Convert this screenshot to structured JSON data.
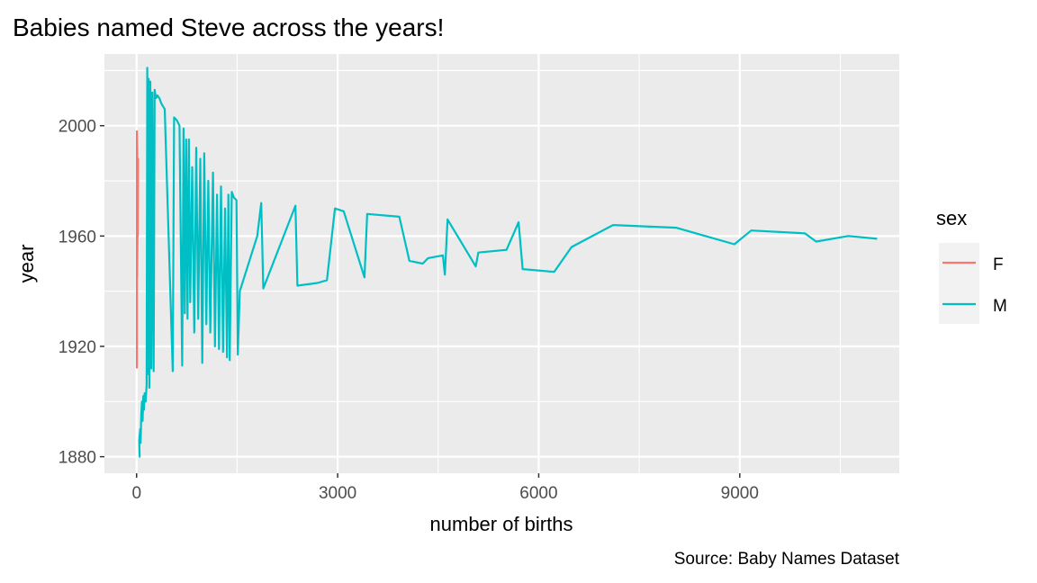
{
  "chart_data": {
    "type": "line",
    "title": "Babies named Steve across the years!",
    "xlabel": "number of births",
    "ylabel": "year",
    "caption": "Source: Baby Names Dataset",
    "xlim": [
      -480,
      11380
    ],
    "ylim": [
      1874,
      2026
    ],
    "x_ticks": [
      0,
      3000,
      6000,
      9000
    ],
    "x_tick_labels": [
      "0",
      "3000",
      "6000",
      "9000"
    ],
    "y_ticks": [
      1880,
      1920,
      1960,
      2000
    ],
    "y_tick_labels": [
      "1880",
      "1920",
      "1960",
      "2000"
    ],
    "grid": true,
    "legend": {
      "title": "sex",
      "position": "right"
    },
    "series": [
      {
        "name": "F",
        "color": "#F8766D",
        "points": [
          [
            5,
            1912
          ],
          [
            5,
            1940
          ],
          [
            5,
            1960
          ],
          [
            5,
            1982
          ],
          [
            5,
            1998
          ],
          [
            10,
            1990
          ],
          [
            15,
            1975
          ],
          [
            20,
            1960
          ],
          [
            22,
            1988
          ],
          [
            18,
            1970
          ],
          [
            12,
            1955
          ],
          [
            8,
            1945
          ]
        ]
      },
      {
        "name": "M",
        "color": "#00BFC4",
        "points": [
          [
            35,
            1880
          ],
          [
            45,
            1880
          ],
          [
            40,
            1886
          ],
          [
            55,
            1890
          ],
          [
            60,
            1885
          ],
          [
            70,
            1895
          ],
          [
            80,
            1900
          ],
          [
            90,
            1893
          ],
          [
            100,
            1902
          ],
          [
            110,
            1897
          ],
          [
            120,
            1903
          ],
          [
            135,
            1900
          ],
          [
            150,
            1906
          ],
          [
            160,
            2021
          ],
          [
            170,
            1910
          ],
          [
            180,
            2017
          ],
          [
            190,
            1905
          ],
          [
            205,
            2016
          ],
          [
            220,
            1912
          ],
          [
            235,
            2012
          ],
          [
            255,
            1911
          ],
          [
            270,
            2013
          ],
          [
            290,
            2010
          ],
          [
            310,
            2011
          ],
          [
            340,
            2010
          ],
          [
            370,
            2008
          ],
          [
            420,
            2006
          ],
          [
            540,
            1911
          ],
          [
            560,
            2003
          ],
          [
            600,
            2002
          ],
          [
            640,
            2000
          ],
          [
            680,
            1913
          ],
          [
            700,
            1999
          ],
          [
            720,
            1932
          ],
          [
            740,
            1995
          ],
          [
            760,
            1930
          ],
          [
            780,
            1995
          ],
          [
            800,
            1936
          ],
          [
            830,
            1985
          ],
          [
            860,
            1925
          ],
          [
            890,
            1992
          ],
          [
            920,
            1930
          ],
          [
            950,
            1988
          ],
          [
            980,
            1914
          ],
          [
            1010,
            1990
          ],
          [
            1040,
            1928
          ],
          [
            1070,
            1980
          ],
          [
            1100,
            1925
          ],
          [
            1140,
            1983
          ],
          [
            1170,
            1920
          ],
          [
            1200,
            1975
          ],
          [
            1230,
            1919
          ],
          [
            1260,
            1978
          ],
          [
            1290,
            1918
          ],
          [
            1320,
            1970
          ],
          [
            1350,
            1916
          ],
          [
            1370,
            1975
          ],
          [
            1390,
            1915
          ],
          [
            1420,
            1976
          ],
          [
            1450,
            1974
          ],
          [
            1490,
            1973
          ],
          [
            1510,
            1917
          ],
          [
            1540,
            1940
          ],
          [
            1800,
            1960
          ],
          [
            1860,
            1972
          ],
          [
            1890,
            1941
          ],
          [
            2370,
            1971
          ],
          [
            2400,
            1942
          ],
          [
            2700,
            1943
          ],
          [
            2840,
            1944
          ],
          [
            2960,
            1970
          ],
          [
            3090,
            1969
          ],
          [
            3400,
            1945
          ],
          [
            3440,
            1968
          ],
          [
            3920,
            1967
          ],
          [
            4070,
            1951
          ],
          [
            4270,
            1950
          ],
          [
            4350,
            1952
          ],
          [
            4570,
            1953
          ],
          [
            4600,
            1946
          ],
          [
            4640,
            1966
          ],
          [
            5060,
            1949
          ],
          [
            5100,
            1954
          ],
          [
            5520,
            1955
          ],
          [
            5700,
            1965
          ],
          [
            5760,
            1948
          ],
          [
            6230,
            1947
          ],
          [
            6490,
            1956
          ],
          [
            7110,
            1964
          ],
          [
            8050,
            1963
          ],
          [
            8920,
            1957
          ],
          [
            9170,
            1962
          ],
          [
            9970,
            1961
          ],
          [
            10140,
            1958
          ],
          [
            10620,
            1960
          ],
          [
            11050,
            1959
          ]
        ]
      }
    ]
  }
}
